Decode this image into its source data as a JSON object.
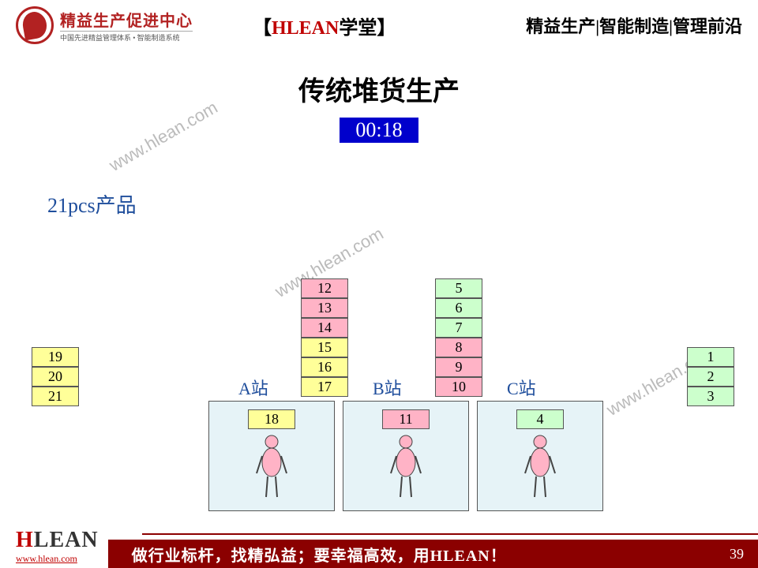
{
  "header": {
    "logo_title": "精益生产促进中心",
    "logo_sub": "中国先进精益管理体系 • 智能制造系统",
    "center_red": "HLEAN",
    "center_black": "学堂",
    "bracket_l": "【",
    "bracket_r": "】",
    "right": "精益生产|智能制造|管理前沿"
  },
  "title": "传统堆货生产",
  "timer": "00:18",
  "product_label": "21pcs产品",
  "colors": {
    "yellow": "#ffff99",
    "pink": "#ffb3c6",
    "green": "#ccffcc",
    "station_bg": "#e6f3f7",
    "timer_bg": "#0000cc",
    "brand_red": "#c00000",
    "footer_bg": "#8b0000",
    "label_blue": "#1f4e9c"
  },
  "left_stack": [
    {
      "n": "19",
      "c": "yellow"
    },
    {
      "n": "20",
      "c": "yellow"
    },
    {
      "n": "21",
      "c": "yellow"
    }
  ],
  "right_stack": [
    {
      "n": "1",
      "c": "green"
    },
    {
      "n": "2",
      "c": "green"
    },
    {
      "n": "3",
      "c": "green"
    }
  ],
  "stack_a": [
    {
      "n": "12",
      "c": "pink"
    },
    {
      "n": "13",
      "c": "pink"
    },
    {
      "n": "14",
      "c": "pink"
    },
    {
      "n": "15",
      "c": "yellow"
    },
    {
      "n": "16",
      "c": "yellow"
    },
    {
      "n": "17",
      "c": "yellow"
    }
  ],
  "stack_b": [
    {
      "n": "5",
      "c": "green"
    },
    {
      "n": "6",
      "c": "green"
    },
    {
      "n": "7",
      "c": "green"
    },
    {
      "n": "8",
      "c": "pink"
    },
    {
      "n": "9",
      "c": "pink"
    },
    {
      "n": "10",
      "c": "pink"
    }
  ],
  "stations": {
    "a": {
      "label": "A站",
      "item": {
        "n": "18",
        "c": "yellow"
      }
    },
    "b": {
      "label": "B站",
      "item": {
        "n": "11",
        "c": "pink"
      }
    },
    "c": {
      "label": "C站",
      "item": {
        "n": "4",
        "c": "green"
      }
    }
  },
  "watermark": "www.hlean.com",
  "footer": {
    "logo_h": "H",
    "logo_rest": "LEAN",
    "url": "www.hlean.com",
    "slogan": "做行业标杆，找精弘益；要幸福高效，用HLEAN！",
    "page": "39"
  }
}
